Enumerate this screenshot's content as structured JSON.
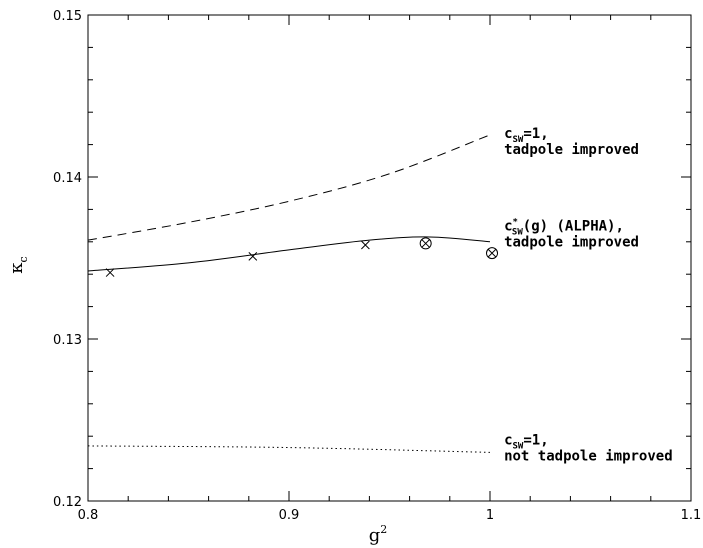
{
  "chart_data": {
    "type": "line",
    "xlabel": "g",
    "xlabel_sup": "2",
    "ylabel": "κ",
    "ylabel_sub": "c",
    "xlim": [
      0.8,
      1.1
    ],
    "ylim": [
      0.12,
      0.15
    ],
    "x_ticks": [
      "0.8",
      "0.9",
      "1",
      "1.1"
    ],
    "y_ticks": [
      "0.12",
      "0.13",
      "0.14",
      "0.15"
    ],
    "grid": false,
    "series": [
      {
        "style": "dashed",
        "x": [
          0.8,
          0.85,
          0.9,
          0.95,
          1.0
        ],
        "y": [
          0.1361,
          0.1372,
          0.1385,
          0.1402,
          0.1426
        ]
      },
      {
        "style": "solid",
        "x": [
          0.8,
          0.85,
          0.9,
          0.94,
          0.97,
          1.0
        ],
        "y": [
          0.1342,
          0.1347,
          0.1355,
          0.1361,
          0.1363,
          0.136
        ]
      },
      {
        "style": "dotted",
        "x": [
          0.8,
          0.9,
          1.0
        ],
        "y": [
          0.1234,
          0.1233,
          0.123
        ]
      }
    ],
    "points_x": [
      {
        "x": 0.811,
        "y": 0.1341
      },
      {
        "x": 0.882,
        "y": 0.1351
      },
      {
        "x": 0.938,
        "y": 0.1358
      },
      {
        "x": 0.968,
        "y": 0.1359
      },
      {
        "x": 1.001,
        "y": 0.1353
      }
    ],
    "points_circled": [
      {
        "x": 0.968,
        "y": 0.1359
      },
      {
        "x": 1.001,
        "y": 0.1353
      }
    ],
    "annotations": [
      {
        "line1_main": "c",
        "line1_sub": "SW",
        "line1_rest": "=1,",
        "line2": "tadpole improved",
        "at_x": 1.007,
        "at_y": 0.1424
      },
      {
        "line1_main": "c",
        "line1_sup": "*",
        "line1_sub": "SW",
        "line1_rest": "(g) (ALPHA),",
        "line2": "tadpole improved",
        "at_x": 1.007,
        "at_y": 0.1367
      },
      {
        "line1_main": "c",
        "line1_sub": "SW",
        "line1_rest": "=1,",
        "line2": "not tadpole improved",
        "at_x": 1.007,
        "at_y": 0.1235
      }
    ]
  }
}
